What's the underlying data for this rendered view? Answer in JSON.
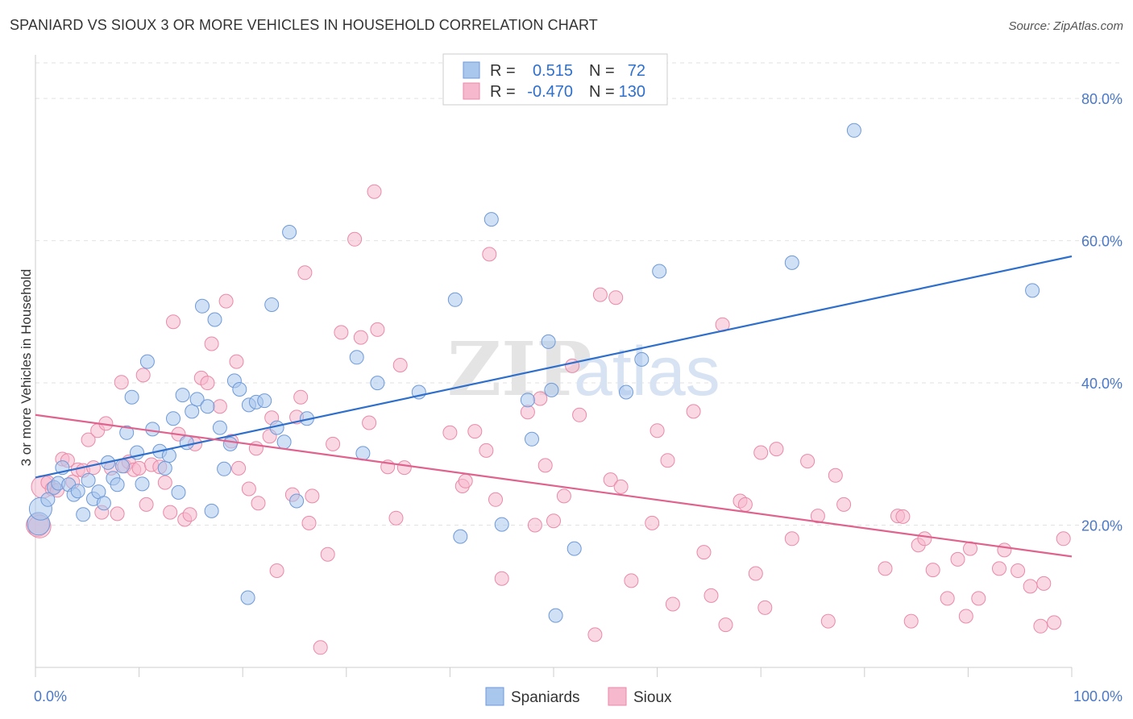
{
  "title": "SPANIARD VS SIOUX 3 OR MORE VEHICLES IN HOUSEHOLD CORRELATION CHART",
  "source": "Source: ZipAtlas.com",
  "watermark": {
    "zip": "ZIP",
    "atlas": "atlas"
  },
  "legend": {
    "rows": [
      {
        "r_label": "R =",
        "r_value": "0.515",
        "n_label": "N =",
        "n_value": "72",
        "color": "#a9c6ec"
      },
      {
        "r_label": "R =",
        "r_value": "-0.470",
        "n_label": "N =",
        "n_value": "130",
        "color": "#f5b8cc"
      }
    ]
  },
  "bottom_legend": [
    {
      "label": "Spaniards",
      "color": "#a9c6ec"
    },
    {
      "label": "Sioux",
      "color": "#f5b8cc"
    }
  ],
  "chart_data": {
    "type": "scatter",
    "title": "SPANIARD VS SIOUX 3 OR MORE VEHICLES IN HOUSEHOLD CORRELATION CHART",
    "xlabel": "",
    "ylabel": "3 or more Vehicles in Household",
    "xlim": [
      0,
      100
    ],
    "ylim": [
      0,
      85
    ],
    "x_tick_labels": [
      "0.0%",
      "100.0%"
    ],
    "y_ticks": [
      20,
      40,
      60,
      80
    ],
    "y_tick_labels": [
      "20.0%",
      "40.0%",
      "60.0%",
      "80.0%"
    ],
    "grid": "horizontal dashed",
    "legend_position": "top-center",
    "series": [
      {
        "name": "Spaniards",
        "color": "#a9c6ec",
        "edge": "#6f9ad8",
        "line_color": "#2f6fcc",
        "trend": [
          [
            0,
            26.7
          ],
          [
            100,
            57.8
          ]
        ],
        "points": [
          [
            0.3,
            20.2
          ],
          [
            0.5,
            22.3
          ],
          [
            1.2,
            23.6
          ],
          [
            1.8,
            25.3
          ],
          [
            2.2,
            25.9
          ],
          [
            2.6,
            28.1
          ],
          [
            3.2,
            25.7
          ],
          [
            3.7,
            24.3
          ],
          [
            4.1,
            24.8
          ],
          [
            4.6,
            21.5
          ],
          [
            5.1,
            26.3
          ],
          [
            5.6,
            23.7
          ],
          [
            6.1,
            24.7
          ],
          [
            6.6,
            23.1
          ],
          [
            7.0,
            28.8
          ],
          [
            7.5,
            26.6
          ],
          [
            7.9,
            25.7
          ],
          [
            8.4,
            28.3
          ],
          [
            8.8,
            33.0
          ],
          [
            9.3,
            38.0
          ],
          [
            9.8,
            30.2
          ],
          [
            10.3,
            25.8
          ],
          [
            10.8,
            43.0
          ],
          [
            11.3,
            33.5
          ],
          [
            12.0,
            30.4
          ],
          [
            12.5,
            28.0
          ],
          [
            12.9,
            29.8
          ],
          [
            13.3,
            35.0
          ],
          [
            13.8,
            24.6
          ],
          [
            14.2,
            38.3
          ],
          [
            14.6,
            31.6
          ],
          [
            15.1,
            36.0
          ],
          [
            15.6,
            37.7
          ],
          [
            16.1,
            50.8
          ],
          [
            16.6,
            36.7
          ],
          [
            17.0,
            22.0
          ],
          [
            17.3,
            48.9
          ],
          [
            17.8,
            33.7
          ],
          [
            18.2,
            27.9
          ],
          [
            18.8,
            31.4
          ],
          [
            19.2,
            40.3
          ],
          [
            19.7,
            39.1
          ],
          [
            20.6,
            36.9
          ],
          [
            21.3,
            37.3
          ],
          [
            22.1,
            37.5
          ],
          [
            22.8,
            51.0
          ],
          [
            23.3,
            33.7
          ],
          [
            24.0,
            31.7
          ],
          [
            24.5,
            61.2
          ],
          [
            25.2,
            23.4
          ],
          [
            26.2,
            35.0
          ],
          [
            20.5,
            9.8
          ],
          [
            31.0,
            43.6
          ],
          [
            31.6,
            30.1
          ],
          [
            33.0,
            40.0
          ],
          [
            37.0,
            38.7
          ],
          [
            40.5,
            51.7
          ],
          [
            41.0,
            18.4
          ],
          [
            44.0,
            63.0
          ],
          [
            45.0,
            20.1
          ],
          [
            47.5,
            37.6
          ],
          [
            47.9,
            32.1
          ],
          [
            49.5,
            45.8
          ],
          [
            49.8,
            39.0
          ],
          [
            50.2,
            7.3
          ],
          [
            52.0,
            16.7
          ],
          [
            57.0,
            38.7
          ],
          [
            58.5,
            43.3
          ],
          [
            60.2,
            55.7
          ],
          [
            73.0,
            56.9
          ],
          [
            79.0,
            75.5
          ],
          [
            96.2,
            53.0
          ]
        ]
      },
      {
        "name": "Sioux",
        "color": "#f5b8cc",
        "edge": "#e98aa8",
        "line_color": "#e0628e",
        "trend": [
          [
            0,
            35.5
          ],
          [
            100,
            15.6
          ]
        ],
        "points": [
          [
            0.2,
            20.0
          ],
          [
            0.7,
            25.4
          ],
          [
            1.2,
            26.0
          ],
          [
            1.6,
            25.1
          ],
          [
            2.1,
            24.9
          ],
          [
            2.6,
            29.3
          ],
          [
            3.1,
            29.1
          ],
          [
            3.6,
            26.1
          ],
          [
            4.1,
            27.8
          ],
          [
            4.6,
            27.7
          ],
          [
            5.1,
            32.0
          ],
          [
            5.6,
            28.1
          ],
          [
            6.0,
            33.3
          ],
          [
            6.4,
            21.8
          ],
          [
            6.8,
            34.3
          ],
          [
            7.3,
            28.0
          ],
          [
            7.9,
            21.6
          ],
          [
            8.3,
            40.1
          ],
          [
            8.6,
            28.3
          ],
          [
            9.0,
            28.9
          ],
          [
            9.5,
            27.8
          ],
          [
            10.0,
            28.0
          ],
          [
            10.4,
            41.1
          ],
          [
            10.7,
            22.9
          ],
          [
            11.2,
            28.5
          ],
          [
            12.0,
            28.2
          ],
          [
            12.5,
            26.0
          ],
          [
            13.0,
            21.8
          ],
          [
            13.3,
            48.6
          ],
          [
            13.8,
            32.8
          ],
          [
            14.4,
            20.8
          ],
          [
            14.9,
            21.5
          ],
          [
            15.4,
            31.4
          ],
          [
            16.0,
            40.7
          ],
          [
            16.6,
            40.0
          ],
          [
            17.0,
            45.5
          ],
          [
            17.8,
            36.7
          ],
          [
            18.4,
            51.5
          ],
          [
            18.9,
            31.8
          ],
          [
            19.4,
            43.0
          ],
          [
            19.6,
            28.0
          ],
          [
            20.6,
            25.1
          ],
          [
            21.3,
            30.8
          ],
          [
            21.5,
            23.1
          ],
          [
            22.6,
            32.5
          ],
          [
            22.8,
            35.1
          ],
          [
            23.3,
            13.6
          ],
          [
            24.8,
            24.3
          ],
          [
            25.2,
            35.2
          ],
          [
            25.6,
            38.0
          ],
          [
            26.0,
            55.5
          ],
          [
            26.4,
            20.3
          ],
          [
            26.7,
            24.1
          ],
          [
            27.5,
            2.8
          ],
          [
            28.2,
            15.9
          ],
          [
            28.7,
            31.4
          ],
          [
            29.5,
            47.1
          ],
          [
            30.8,
            60.2
          ],
          [
            31.4,
            46.4
          ],
          [
            32.2,
            34.4
          ],
          [
            32.7,
            66.9
          ],
          [
            33.0,
            47.5
          ],
          [
            34.0,
            28.2
          ],
          [
            34.8,
            21.0
          ],
          [
            35.2,
            42.5
          ],
          [
            35.6,
            28.1
          ],
          [
            40.0,
            33.0
          ],
          [
            41.2,
            25.5
          ],
          [
            41.5,
            26.2
          ],
          [
            42.4,
            33.2
          ],
          [
            43.5,
            30.5
          ],
          [
            43.8,
            58.1
          ],
          [
            44.4,
            23.6
          ],
          [
            45.0,
            12.5
          ],
          [
            47.5,
            35.9
          ],
          [
            48.2,
            20.0
          ],
          [
            48.7,
            37.8
          ],
          [
            49.2,
            28.4
          ],
          [
            50.0,
            20.6
          ],
          [
            51.0,
            24.1
          ],
          [
            51.8,
            42.4
          ],
          [
            52.5,
            35.5
          ],
          [
            54.0,
            4.6
          ],
          [
            54.5,
            52.4
          ],
          [
            55.5,
            26.4
          ],
          [
            56.0,
            52.0
          ],
          [
            56.5,
            25.4
          ],
          [
            57.5,
            12.2
          ],
          [
            59.5,
            20.3
          ],
          [
            60.0,
            33.3
          ],
          [
            61.0,
            29.1
          ],
          [
            61.5,
            8.9
          ],
          [
            63.5,
            36.0
          ],
          [
            64.5,
            16.2
          ],
          [
            65.2,
            10.1
          ],
          [
            66.3,
            48.2
          ],
          [
            66.6,
            6.0
          ],
          [
            68.0,
            23.4
          ],
          [
            68.5,
            22.9
          ],
          [
            69.5,
            13.2
          ],
          [
            70.0,
            30.2
          ],
          [
            70.4,
            8.4
          ],
          [
            71.5,
            30.7
          ],
          [
            73.0,
            18.1
          ],
          [
            74.5,
            29.0
          ],
          [
            75.5,
            21.3
          ],
          [
            76.5,
            6.5
          ],
          [
            77.2,
            27.0
          ],
          [
            78.0,
            22.9
          ],
          [
            82.0,
            13.9
          ],
          [
            83.2,
            21.3
          ],
          [
            83.7,
            21.2
          ],
          [
            84.5,
            6.5
          ],
          [
            85.2,
            17.2
          ],
          [
            85.8,
            18.1
          ],
          [
            86.6,
            13.7
          ],
          [
            88.0,
            9.7
          ],
          [
            89.0,
            15.2
          ],
          [
            89.8,
            7.2
          ],
          [
            90.2,
            16.7
          ],
          [
            91.0,
            9.7
          ],
          [
            93.0,
            13.9
          ],
          [
            93.5,
            16.5
          ],
          [
            94.8,
            13.6
          ],
          [
            96.0,
            11.4
          ],
          [
            97.3,
            11.8
          ],
          [
            98.3,
            6.3
          ],
          [
            99.2,
            18.1
          ],
          [
            97.0,
            5.8
          ],
          [
            0.4,
            19.8
          ]
        ]
      }
    ]
  }
}
